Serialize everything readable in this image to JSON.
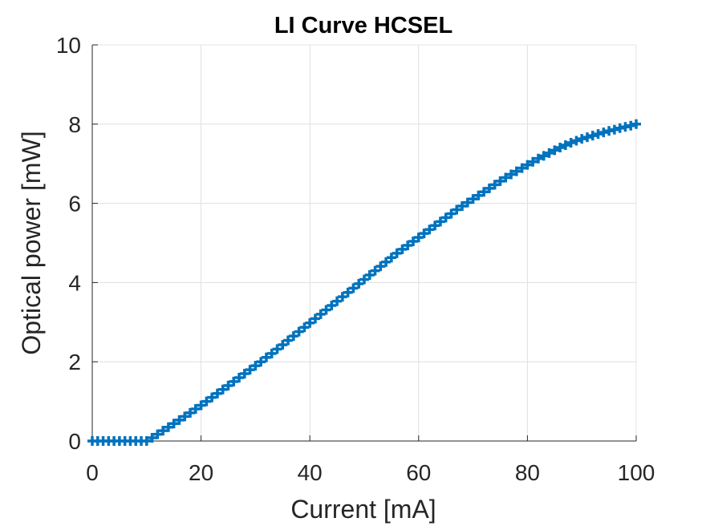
{
  "chart_data": {
    "type": "scatter",
    "title": "LI Curve HCSEL",
    "xlabel": "Current [mA]",
    "ylabel": "Optical power [mW]",
    "xlim": [
      0,
      100
    ],
    "ylim": [
      0,
      10
    ],
    "xticks": [
      "0",
      "20",
      "40",
      "60",
      "80",
      "100"
    ],
    "yticks": [
      "0",
      "2",
      "4",
      "6",
      "8",
      "10"
    ],
    "grid": true,
    "marker": "plus",
    "color": "#0072BD",
    "series": [
      {
        "x": [
          0,
          1,
          2,
          3,
          4,
          5,
          6,
          7,
          8,
          9,
          10,
          11,
          12,
          13,
          14,
          15,
          16,
          17,
          18,
          19,
          20,
          21,
          22,
          23,
          24,
          25,
          26,
          27,
          28,
          29,
          30,
          31,
          32,
          33,
          34,
          35,
          36,
          37,
          38,
          39,
          40,
          41,
          42,
          43,
          44,
          45,
          46,
          47,
          48,
          49,
          50,
          51,
          52,
          53,
          54,
          55,
          56,
          57,
          58,
          59,
          60,
          61,
          62,
          63,
          64,
          65,
          66,
          67,
          68,
          69,
          70,
          71,
          72,
          73,
          74,
          75,
          76,
          77,
          78,
          79,
          80,
          81,
          82,
          83,
          84,
          85,
          86,
          87,
          88,
          89,
          90,
          91,
          92,
          93,
          94,
          95,
          96,
          97,
          98,
          99,
          100
        ],
        "y": [
          0,
          0,
          0,
          0,
          0,
          0,
          0,
          0,
          0,
          0,
          0,
          0.08,
          0.17,
          0.26,
          0.35,
          0.44,
          0.53,
          0.62,
          0.71,
          0.81,
          0.9,
          1.0,
          1.1,
          1.2,
          1.3,
          1.4,
          1.5,
          1.6,
          1.7,
          1.8,
          1.9,
          2.0,
          2.11,
          2.21,
          2.32,
          2.43,
          2.54,
          2.65,
          2.76,
          2.87,
          2.98,
          3.09,
          3.2,
          3.31,
          3.42,
          3.53,
          3.64,
          3.75,
          3.86,
          3.97,
          4.08,
          4.19,
          4.3,
          4.41,
          4.52,
          4.63,
          4.74,
          4.84,
          4.94,
          5.04,
          5.14,
          5.24,
          5.34,
          5.44,
          5.54,
          5.64,
          5.74,
          5.84,
          5.93,
          6.02,
          6.11,
          6.2,
          6.29,
          6.38,
          6.47,
          6.56,
          6.65,
          6.73,
          6.81,
          6.89,
          6.97,
          7.05,
          7.13,
          7.2,
          7.27,
          7.34,
          7.41,
          7.47,
          7.53,
          7.58,
          7.63,
          7.67,
          7.71,
          7.75,
          7.79,
          7.83,
          7.86,
          7.9,
          7.93,
          7.96,
          8.0
        ]
      }
    ]
  }
}
